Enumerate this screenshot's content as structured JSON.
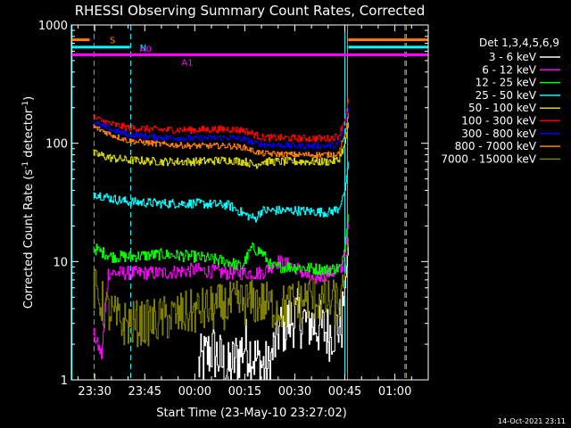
{
  "chart_data": {
    "type": "line",
    "title": "RHESSI Observing Summary Count Rates, Corrected",
    "xlabel": "Start Time (23-May-10 23:27:02)",
    "ylabel_main": "Corrected Count Rate (s",
    "ylabel_sup1": "-1",
    "ylabel_mid": " detector",
    "ylabel_sup2": "-1",
    "ylabel_end": ")",
    "yscale": "log",
    "ylim": [
      1,
      1000
    ],
    "xlim_minutes": [
      -7,
      100
    ],
    "x_ticks": [
      {
        "label": "23:30",
        "minute": 0
      },
      {
        "label": "23:45",
        "minute": 15
      },
      {
        "label": "00:00",
        "minute": 30
      },
      {
        "label": "00:15",
        "minute": 45
      },
      {
        "label": "00:30",
        "minute": 60
      },
      {
        "label": "00:45",
        "minute": 75
      },
      {
        "label": "01:00",
        "minute": 90
      }
    ],
    "y_ticks": [
      {
        "label": "1",
        "value": 1
      },
      {
        "label": "10",
        "value": 10
      },
      {
        "label": "100",
        "value": 100
      },
      {
        "label": "1000",
        "value": 1000
      }
    ],
    "legend_title": "Det 1,3,4,5,6,9",
    "legend_placement": "right",
    "footer": "14-Oct-2021 23:11",
    "flag_bars": [
      {
        "label": "S",
        "color": "#ff7f00",
        "y": 750,
        "x_start": -7,
        "x_end": -1.5
      },
      {
        "label": "N",
        "color": "#00ffff",
        "y": 650,
        "x_start": -7,
        "x_end": 10.5
      },
      {
        "label": "A0",
        "color": "#ff00ff",
        "y": 560,
        "x_start": -7,
        "x_end": 100
      },
      {
        "label": "A1",
        "color": "#ff00ff",
        "y": 560,
        "x_start": -7,
        "x_end": 100
      },
      {
        "label": "",
        "color": "#ff7f00",
        "y": 750,
        "x_start": 76,
        "x_end": 100
      },
      {
        "label": "",
        "color": "#00ffff",
        "y": 650,
        "x_start": 76,
        "x_end": 100
      }
    ],
    "vlines": [
      {
        "minute": -6.8,
        "color": "#00ffff",
        "dashed": false
      },
      {
        "minute": -0.2,
        "color": "#ff7f00",
        "dashed": true
      },
      {
        "minute": 10.8,
        "color": "#00ffff",
        "dashed": true
      },
      {
        "minute": 75.0,
        "color": "#00ffff",
        "dashed": false
      },
      {
        "minute": 75.8,
        "color": "#ff7f00",
        "dashed": false
      },
      {
        "minute": 93.0,
        "color": "#ff7f00",
        "dashed": true
      },
      {
        "minute": 93.4,
        "color": "#00ffff",
        "dashed": true
      }
    ],
    "series": [
      {
        "name": "3 - 6 keV",
        "color": "#ffffff",
        "points": [
          [
            31,
            1.3
          ],
          [
            35,
            1.8
          ],
          [
            40,
            1.2
          ],
          [
            45,
            2.0
          ],
          [
            48,
            1.5
          ],
          [
            52,
            1.2
          ],
          [
            55,
            2.6
          ],
          [
            60,
            3.4
          ],
          [
            65,
            3.0
          ],
          [
            70,
            2.5
          ],
          [
            74,
            3.0
          ],
          [
            75,
            6
          ],
          [
            76,
            14
          ]
        ],
        "noise": 0.25
      },
      {
        "name": "6 - 12 keV",
        "color": "#ff00ff",
        "points": [
          [
            -0.5,
            2.5
          ],
          [
            2,
            1.6
          ],
          [
            4,
            8
          ],
          [
            10,
            8
          ],
          [
            20,
            8
          ],
          [
            30,
            8.5
          ],
          [
            40,
            8
          ],
          [
            50,
            8
          ],
          [
            55,
            10
          ],
          [
            60,
            9
          ],
          [
            65,
            7
          ],
          [
            70,
            8
          ],
          [
            74,
            8.5
          ],
          [
            75,
            12
          ],
          [
            76,
            22
          ]
        ],
        "noise": 0.06
      },
      {
        "name": "12 - 25 keV",
        "color": "#00ff00",
        "points": [
          [
            -0.5,
            13
          ],
          [
            5,
            11
          ],
          [
            10,
            11
          ],
          [
            20,
            11.5
          ],
          [
            30,
            11
          ],
          [
            40,
            10
          ],
          [
            44,
            9
          ],
          [
            47,
            13
          ],
          [
            50,
            12
          ],
          [
            53,
            9
          ],
          [
            60,
            9
          ],
          [
            70,
            8.5
          ],
          [
            74,
            9
          ],
          [
            75,
            14
          ],
          [
            76,
            25
          ]
        ],
        "noise": 0.05
      },
      {
        "name": "25 - 50 keV",
        "color": "#00ffff",
        "points": [
          [
            -0.5,
            38
          ],
          [
            5,
            34
          ],
          [
            10,
            32
          ],
          [
            20,
            31
          ],
          [
            30,
            31
          ],
          [
            40,
            30
          ],
          [
            45,
            25
          ],
          [
            48,
            23
          ],
          [
            50,
            27
          ],
          [
            60,
            27
          ],
          [
            70,
            26
          ],
          [
            73,
            28
          ],
          [
            75,
            40
          ],
          [
            76,
            70
          ]
        ],
        "noise": 0.04
      },
      {
        "name": "50 - 100 keV",
        "color": "#d7d700",
        "points": [
          [
            -0.5,
            82
          ],
          [
            5,
            75
          ],
          [
            10,
            72
          ],
          [
            20,
            70
          ],
          [
            30,
            70
          ],
          [
            40,
            72
          ],
          [
            45,
            70
          ],
          [
            48,
            65
          ],
          [
            50,
            70
          ],
          [
            60,
            70
          ],
          [
            70,
            70
          ],
          [
            73,
            72
          ],
          [
            75,
            100
          ],
          [
            76,
            150
          ]
        ],
        "noise": 0.035
      },
      {
        "name": "100 - 300 keV",
        "color": "#ff0000",
        "points": [
          [
            -0.5,
            165
          ],
          [
            5,
            145
          ],
          [
            10,
            135
          ],
          [
            20,
            130
          ],
          [
            30,
            130
          ],
          [
            40,
            132
          ],
          [
            45,
            128
          ],
          [
            48,
            118
          ],
          [
            50,
            112
          ],
          [
            60,
            110
          ],
          [
            70,
            110
          ],
          [
            73,
            115
          ],
          [
            75,
            160
          ],
          [
            76,
            240
          ]
        ],
        "noise": 0.03
      },
      {
        "name": "300 - 800 keV",
        "color": "#0000ff",
        "points": [
          [
            -0.5,
            150
          ],
          [
            5,
            130
          ],
          [
            10,
            118
          ],
          [
            20,
            112
          ],
          [
            30,
            110
          ],
          [
            40,
            112
          ],
          [
            45,
            108
          ],
          [
            48,
            100
          ],
          [
            50,
            98
          ],
          [
            60,
            95
          ],
          [
            70,
            95
          ],
          [
            73,
            98
          ],
          [
            75,
            140
          ],
          [
            76,
            200
          ]
        ],
        "noise": 0.025
      },
      {
        "name": "800 - 7000 keV",
        "color": "#ff7f00",
        "points": [
          [
            -0.5,
            138
          ],
          [
            5,
            118
          ],
          [
            10,
            105
          ],
          [
            20,
            98
          ],
          [
            30,
            95
          ],
          [
            40,
            95
          ],
          [
            45,
            92
          ],
          [
            48,
            85
          ],
          [
            50,
            82
          ],
          [
            60,
            80
          ],
          [
            70,
            80
          ],
          [
            73,
            82
          ],
          [
            75,
            120
          ],
          [
            76,
            180
          ]
        ],
        "noise": 0.025
      },
      {
        "name": "7000 - 15000 keV",
        "color": "#808000",
        "points": [
          [
            -0.5,
            6
          ],
          [
            3,
            4
          ],
          [
            8,
            3
          ],
          [
            15,
            3
          ],
          [
            25,
            3.5
          ],
          [
            35,
            4
          ],
          [
            45,
            4.5
          ],
          [
            50,
            4.5
          ],
          [
            55,
            4
          ],
          [
            60,
            4.5
          ],
          [
            65,
            5
          ],
          [
            70,
            4.5
          ],
          [
            74,
            4.5
          ],
          [
            75,
            8
          ],
          [
            76,
            16
          ]
        ],
        "noise": 0.2
      }
    ]
  }
}
